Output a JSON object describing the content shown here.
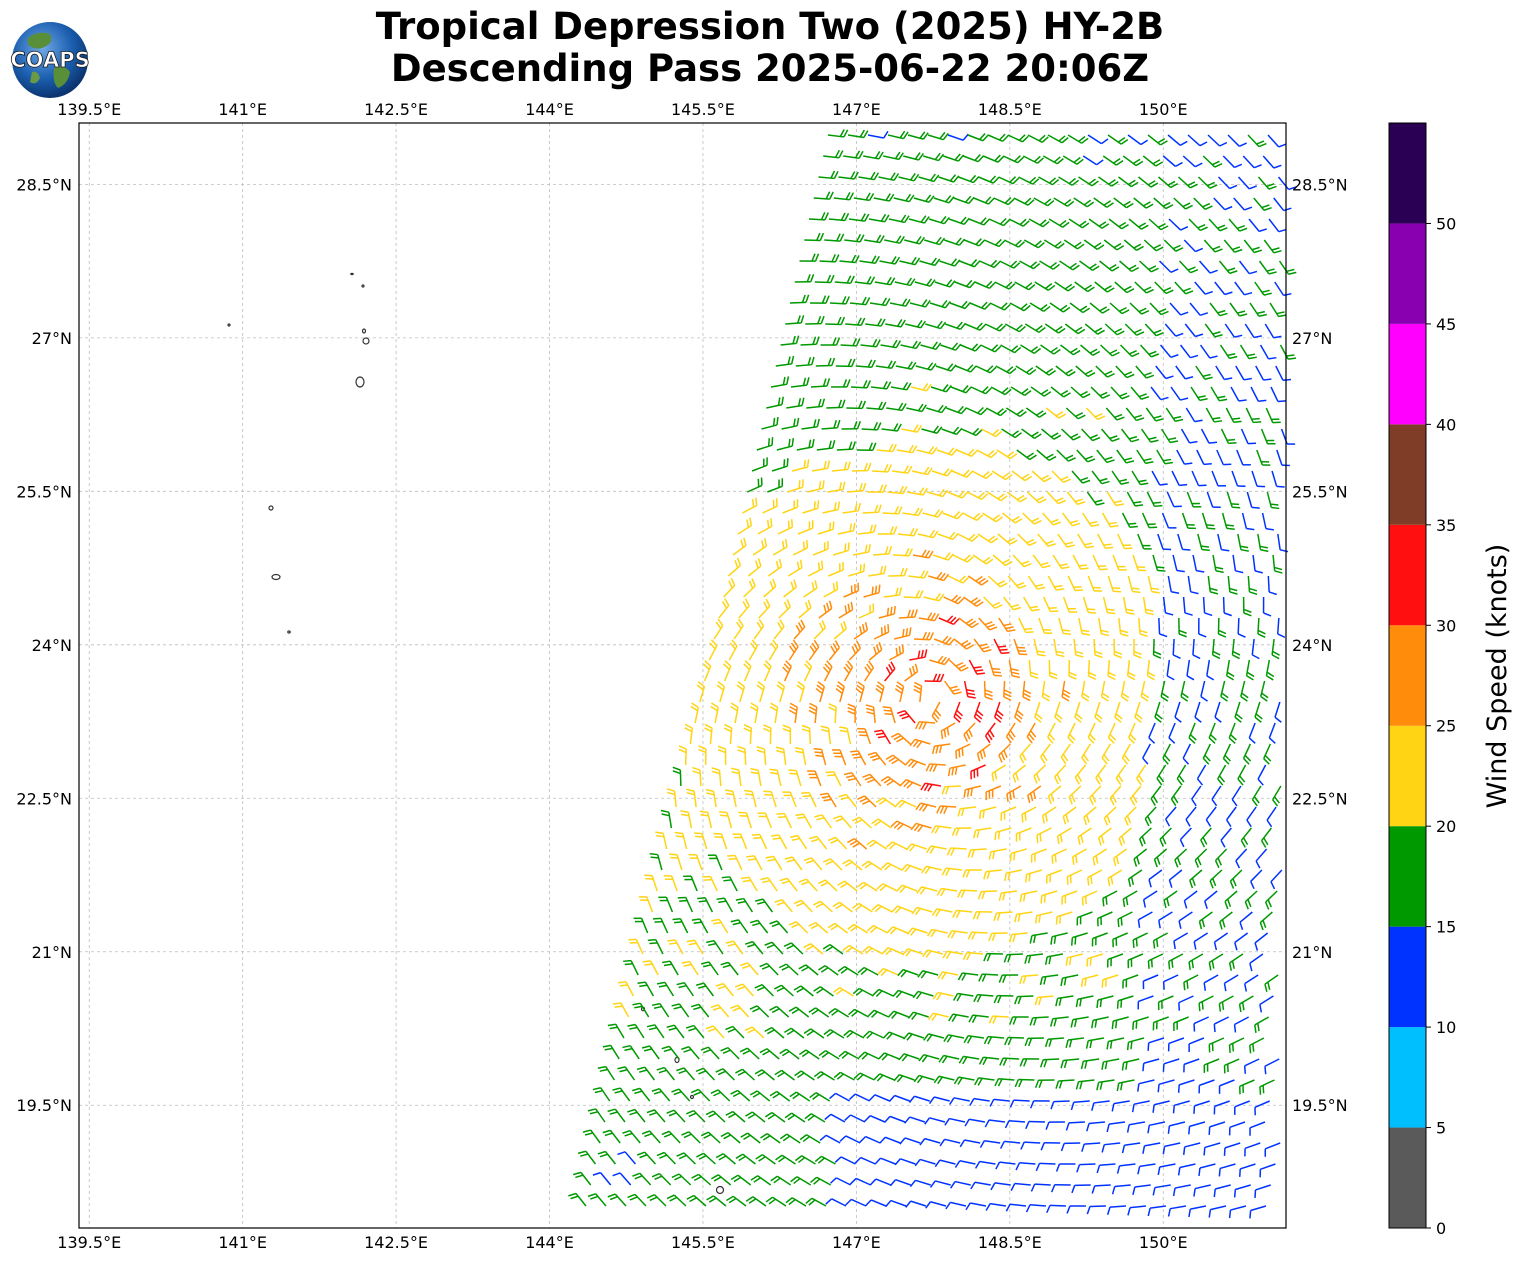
{
  "title": {
    "line1": "Tropical Depression Two (2025) HY-2B",
    "line2": "Descending Pass 2025-06-22 20:06Z"
  },
  "logo": {
    "text": "COAPS",
    "icon": "coaps-globe-logo"
  },
  "map": {
    "lon_labels": [
      "139.5°E",
      "141°E",
      "142.5°E",
      "144°E",
      "145.5°E",
      "147°E",
      "148.5°E",
      "150°E"
    ],
    "lat_labels": [
      "28.5°N",
      "27°N",
      "25.5°N",
      "24°N",
      "22.5°N",
      "21°N",
      "19.5°N"
    ],
    "lon_values": [
      139.5,
      141,
      142.5,
      144,
      145.5,
      147,
      148.5,
      150
    ],
    "lat_values": [
      28.5,
      27,
      25.5,
      24,
      22.5,
      21,
      19.5
    ],
    "lon_range": [
      139.4,
      151.2
    ],
    "lat_range": [
      18.3,
      29.1
    ],
    "gridlines": true,
    "features": "wind barbs over ocean, small island coastlines"
  },
  "colorbar": {
    "label": "Wind Speed (knots)",
    "ticks": [
      "0",
      "5",
      "10",
      "15",
      "20",
      "25",
      "30",
      "35",
      "40",
      "45",
      "50"
    ],
    "bins": [
      {
        "from": 0,
        "to": 5,
        "color": "#5a5a5a"
      },
      {
        "from": 5,
        "to": 10,
        "color": "#00bfff"
      },
      {
        "from": 10,
        "to": 15,
        "color": "#0033ff"
      },
      {
        "from": 15,
        "to": 20,
        "color": "#009900"
      },
      {
        "from": 20,
        "to": 25,
        "color": "#ffd414"
      },
      {
        "from": 25,
        "to": 30,
        "color": "#ff8c0a"
      },
      {
        "from": 30,
        "to": 35,
        "color": "#ff0f0f"
      },
      {
        "from": 35,
        "to": 40,
        "color": "#7f3d28"
      },
      {
        "from": 40,
        "to": 45,
        "color": "#ff00ff"
      },
      {
        "from": 45,
        "to": 50,
        "color": "#8800b0"
      },
      {
        "from": 50,
        "to": 55,
        "color": "#2a0055"
      }
    ]
  }
}
